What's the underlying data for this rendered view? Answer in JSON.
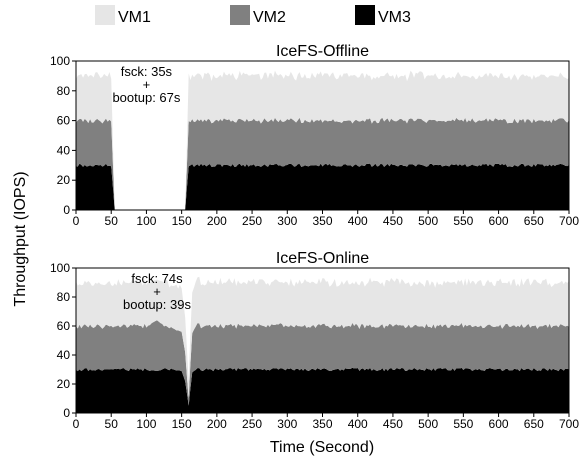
{
  "legend": [
    {
      "name": "VM1",
      "color": "#e6e6e6"
    },
    {
      "name": "VM2",
      "color": "#808080"
    },
    {
      "name": "VM3",
      "color": "#000000"
    }
  ],
  "ylabel": "Throughput (IOPS)",
  "xlabel": "Time (Second)",
  "chart_data": [
    {
      "type": "area",
      "title": "IceFS-Offline",
      "stacked": true,
      "xlim": [
        0,
        700
      ],
      "ylim": [
        0,
        100
      ],
      "xticks": [
        0,
        50,
        100,
        150,
        200,
        250,
        300,
        350,
        400,
        450,
        500,
        550,
        600,
        650,
        700
      ],
      "yticks": [
        0,
        20,
        40,
        60,
        80,
        100
      ],
      "annotation": {
        "x": 100,
        "lines": [
          "fsck: 35s",
          "+",
          "bootup: 67s"
        ]
      },
      "x": [
        0,
        50,
        55,
        60,
        150,
        155,
        160,
        700
      ],
      "series": [
        {
          "name": "VM3",
          "values": [
            30,
            30,
            0,
            0,
            0,
            0,
            30,
            30
          ]
        },
        {
          "name": "VM2",
          "values": [
            30,
            30,
            0,
            0,
            0,
            0,
            30,
            30
          ]
        },
        {
          "name": "VM1",
          "values": [
            30,
            30,
            0,
            0,
            0,
            0,
            30,
            30
          ]
        }
      ]
    },
    {
      "type": "area",
      "title": "IceFS-Online",
      "stacked": true,
      "xlim": [
        0,
        700
      ],
      "ylim": [
        0,
        100
      ],
      "xticks": [
        0,
        50,
        100,
        150,
        200,
        250,
        300,
        350,
        400,
        450,
        500,
        550,
        600,
        650,
        700
      ],
      "yticks": [
        0,
        20,
        40,
        60,
        80,
        100
      ],
      "annotation": {
        "x": 115,
        "lines": [
          "fsck: 74s",
          "+",
          "bootup: 39s"
        ]
      },
      "x": [
        0,
        50,
        100,
        115,
        125,
        140,
        150,
        155,
        158,
        160,
        162,
        165,
        170,
        180,
        200,
        700
      ],
      "series": [
        {
          "name": "VM3",
          "values": [
            30,
            30,
            30,
            29,
            30,
            30,
            29,
            22,
            12,
            5,
            15,
            28,
            30,
            30,
            30,
            30
          ]
        },
        {
          "name": "VM2",
          "values": [
            30,
            30,
            30,
            35,
            30,
            28,
            27,
            20,
            10,
            5,
            15,
            27,
            30,
            30,
            30,
            30
          ]
        },
        {
          "name": "VM1",
          "values": [
            30,
            30,
            30,
            28,
            30,
            30,
            30,
            24,
            18,
            12,
            20,
            28,
            30,
            30,
            30,
            30
          ]
        }
      ]
    }
  ]
}
